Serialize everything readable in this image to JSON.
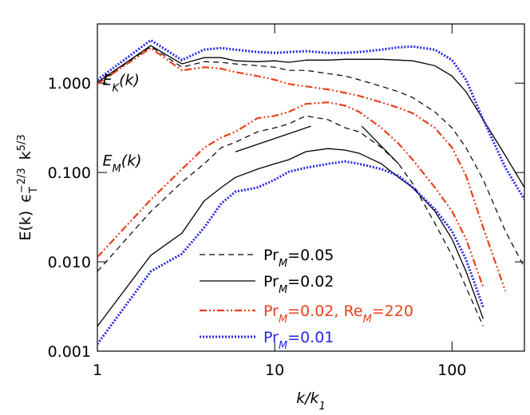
{
  "chart_data": {
    "type": "line",
    "x": [
      1,
      2,
      3,
      4,
      5,
      6,
      8,
      10,
      12,
      15,
      20,
      25,
      30,
      40,
      50,
      60,
      80,
      100,
      120,
      150,
      200,
      256
    ],
    "xlim": [
      1,
      256
    ],
    "ylim": [
      0.001,
      4.6
    ],
    "xlog": true,
    "ylog": true,
    "xticks": [
      1,
      10,
      100
    ],
    "yticks": [
      {
        "value": 1,
        "label": "1.000"
      },
      {
        "value": 0.1,
        "label": "0.100"
      },
      {
        "value": 0.01,
        "label": "0.010"
      },
      {
        "value": 0.001,
        "label": "0.001"
      }
    ],
    "xlabel": [
      "k/k",
      "1"
    ],
    "ylabel": [
      "E(k)",
      "ϵ",
      "T",
      "−2/3",
      "k",
      "5/3"
    ],
    "annotations": [
      {
        "text": [
          "E",
          "K",
          "(k)"
        ],
        "x": 1.07,
        "y": 0.95
      },
      {
        "text": [
          "E",
          "M",
          "(k)"
        ],
        "x": 1.07,
        "y": 0.12
      }
    ],
    "series": [
      {
        "name": [
          "Pr",
          "M",
          "=0.05"
        ],
        "color": "#000000",
        "style": "dashed",
        "kinetic": [
          1.0,
          2.57,
          1.51,
          1.74,
          1.71,
          1.64,
          1.57,
          1.51,
          1.39,
          1.39,
          1.28,
          1.2,
          1.09,
          0.92,
          0.8,
          0.69,
          0.477,
          0.316,
          0.189,
          0.083,
          0.022,
          0.0087
        ],
        "magnetic": [
          0.0078,
          0.0365,
          0.078,
          0.125,
          0.19,
          0.218,
          0.285,
          0.316,
          0.35,
          0.43,
          0.39,
          0.316,
          0.285,
          0.19,
          0.125,
          0.075,
          0.027,
          0.0118,
          0.0052,
          0.0019,
          null,
          null
        ]
      },
      {
        "name": [
          "Pr",
          "M",
          "=0.02"
        ],
        "color": "#000000",
        "style": "solid",
        "kinetic": [
          1.02,
          2.63,
          1.64,
          1.93,
          1.93,
          1.78,
          1.74,
          1.78,
          1.71,
          1.81,
          1.81,
          1.85,
          1.85,
          1.85,
          1.81,
          1.78,
          1.57,
          1.2,
          0.8,
          0.39,
          0.154,
          0.068
        ],
        "magnetic": [
          0.0019,
          0.0118,
          0.021,
          0.048,
          0.068,
          0.088,
          0.109,
          0.125,
          0.139,
          0.171,
          0.185,
          0.178,
          0.164,
          0.125,
          0.088,
          0.068,
          0.037,
          0.018,
          0.0078,
          0.0023,
          null,
          null
        ]
      },
      {
        "name": [
          "Pr",
          "M",
          "=0.02, Re",
          "M",
          "=220"
        ],
        "color": "#e8401c",
        "style": "dashdotdot",
        "kinetic": [
          0.98,
          2.47,
          1.39,
          1.51,
          1.45,
          1.33,
          1.2,
          1.09,
          0.98,
          0.92,
          0.85,
          0.78,
          0.72,
          0.61,
          0.53,
          0.46,
          0.316,
          0.19,
          0.092,
          0.024,
          0.0047,
          null
        ],
        "magnetic": [
          0.0113,
          0.0497,
          0.109,
          0.189,
          0.247,
          0.285,
          0.405,
          0.43,
          0.477,
          0.586,
          0.61,
          0.56,
          0.477,
          0.316,
          0.21,
          0.139,
          0.068,
          0.037,
          0.018,
          0.0052,
          null,
          null
        ]
      },
      {
        "name": [
          "Pr",
          "M",
          "=0.01"
        ],
        "color": "#2626e6",
        "style": "dotted",
        "kinetic": [
          1.09,
          3.03,
          1.81,
          2.37,
          2.47,
          2.37,
          2.23,
          2.18,
          2.23,
          2.28,
          2.18,
          2.18,
          2.23,
          2.37,
          2.52,
          2.57,
          2.37,
          1.81,
          1.09,
          0.39,
          0.113,
          0.05
        ],
        "magnetic": [
          0.0012,
          0.0078,
          0.0123,
          0.0242,
          0.045,
          0.061,
          0.068,
          0.083,
          0.102,
          0.113,
          0.125,
          0.133,
          0.125,
          0.109,
          0.092,
          0.068,
          0.039,
          0.022,
          0.0106,
          0.0031,
          null,
          null
        ]
      }
    ],
    "reference_lines": [
      {
        "x": [
          6,
          16
        ],
        "values": [
          0.17,
          0.33
        ]
      },
      {
        "x": [
          31,
          50
        ],
        "values": [
          0.33,
          0.125
        ]
      }
    ]
  }
}
